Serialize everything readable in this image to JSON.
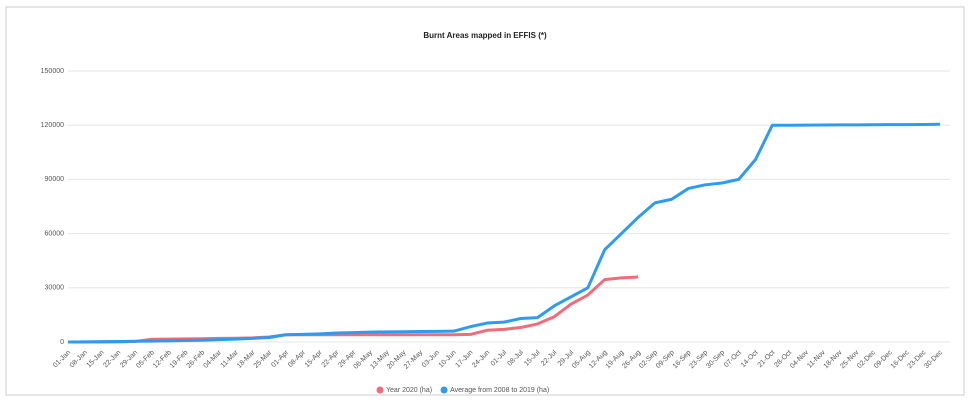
{
  "chart_data": {
    "type": "line",
    "title": "Burnt Areas mapped in EFFIS (*)",
    "categories": [
      "01-Jan",
      "08-Jan",
      "15-Jan",
      "22-Jan",
      "29-Jan",
      "05-Feb",
      "12-Feb",
      "19-Feb",
      "26-Feb",
      "04-Mar",
      "11-Mar",
      "18-Mar",
      "25-Mar",
      "01-Apr",
      "08-Apr",
      "15-Apr",
      "22-Apr",
      "29-Apr",
      "06-May",
      "13-May",
      "20-May",
      "27-May",
      "03-Jun",
      "10-Jun",
      "17-Jun",
      "24-Jun",
      "01-Jul",
      "08-Jul",
      "15-Jul",
      "22-Jul",
      "29-Jul",
      "05-Aug",
      "12-Aug",
      "19-Aug",
      "26-Aug",
      "02-Sep",
      "09-Sep",
      "16-Sep",
      "23-Sep",
      "30-Sep",
      "07-Oct",
      "14-Oct",
      "21-Oct",
      "28-Oct",
      "04-Nov",
      "11-Nov",
      "18-Nov",
      "25-Nov",
      "02-Dec",
      "09-Dec",
      "16-Dec",
      "23-Dec",
      "30-Dec"
    ],
    "series": [
      {
        "name": "Year 2020 (ha)",
        "color": "#f16b7a",
        "values": [
          0,
          0,
          0,
          100,
          300,
          1500,
          1600,
          1700,
          1800,
          2000,
          2100,
          2300,
          2800,
          4000,
          4000,
          4000,
          4000,
          4000,
          4000,
          4000,
          4000,
          4000,
          4000,
          4000,
          4200,
          6500,
          7000,
          8000,
          10000,
          14000,
          21000,
          26000,
          34500,
          35500,
          36000,
          null,
          null,
          null,
          null,
          null,
          null,
          null,
          null,
          null,
          null,
          null,
          null,
          null,
          null,
          null,
          null,
          null,
          null
        ]
      },
      {
        "name": "Average from 2008 to 2019 (ha)",
        "color": "#2f9bf0",
        "values": [
          0,
          100,
          200,
          300,
          400,
          500,
          600,
          800,
          1000,
          1300,
          1600,
          2000,
          2500,
          4000,
          4200,
          4500,
          5000,
          5200,
          5500,
          5600,
          5700,
          5800,
          5900,
          6000,
          8500,
          10500,
          11000,
          13000,
          13500,
          20000,
          25000,
          30000,
          51000,
          60000,
          69000,
          77000,
          79000,
          85000,
          87000,
          88000,
          90000,
          101000,
          120000,
          120000,
          120050,
          120100,
          120150,
          120200,
          120250,
          120300,
          120350,
          120400,
          120500
        ]
      }
    ],
    "ylim": [
      0,
      150000
    ],
    "yticks": [
      0,
      30000,
      60000,
      90000,
      120000,
      150000
    ],
    "grid": true
  }
}
